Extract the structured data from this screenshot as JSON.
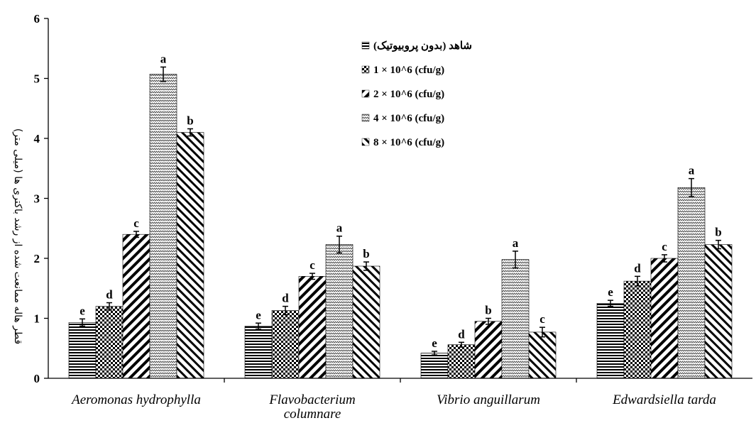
{
  "chart_data": {
    "type": "bar",
    "title": "",
    "xlabel": "",
    "ylabel": "قطر هاله ممانعت شده از رشد باکتری ها (میلی متر)",
    "ylim": [
      0,
      6
    ],
    "yticks": [
      "0",
      "1",
      "2",
      "3",
      "4",
      "5",
      "6"
    ],
    "grid": false,
    "legend_position": "top-center",
    "categories": [
      "Aeromonas hydrophylla",
      "Flavobacterium columnare",
      "Vibrio anguillarum",
      "Edwardsiella tarda"
    ],
    "series": [
      {
        "name": "شاهد (بدون پروبیوتیک)",
        "pattern": "hlines",
        "values": [
          0.93,
          0.87,
          0.42,
          1.25
        ],
        "errors": [
          0.06,
          0.05,
          0.03,
          0.05
        ],
        "letters": [
          "e",
          "e",
          "e",
          "e"
        ]
      },
      {
        "name": "1 × 10^6 (cfu/g)",
        "pattern": "checker",
        "values": [
          1.2,
          1.13,
          0.56,
          1.62
        ],
        "errors": [
          0.06,
          0.07,
          0.04,
          0.08
        ],
        "letters": [
          "d",
          "d",
          "d",
          "d"
        ]
      },
      {
        "name": "2 × 10^6 (cfu/g)",
        "pattern": "wide-diag",
        "values": [
          2.4,
          1.7,
          0.95,
          2.0
        ],
        "errors": [
          0.05,
          0.05,
          0.05,
          0.06
        ],
        "letters": [
          "c",
          "c",
          "b",
          "c"
        ]
      },
      {
        "name": "4 × 10^6 (cfu/g)",
        "pattern": "zigzag",
        "values": [
          5.07,
          2.23,
          1.98,
          3.18
        ],
        "errors": [
          0.12,
          0.14,
          0.14,
          0.15
        ],
        "letters": [
          "a",
          "a",
          "a",
          "a"
        ]
      },
      {
        "name": "8 × 10^6 (cfu/g)",
        "pattern": "back-diag",
        "values": [
          4.1,
          1.87,
          0.77,
          2.23
        ],
        "errors": [
          0.06,
          0.07,
          0.08,
          0.07
        ],
        "letters": [
          "b",
          "b",
          "c",
          "b"
        ]
      }
    ]
  },
  "colors": {
    "bar_fill": "#000000",
    "background": "#ffffff"
  }
}
